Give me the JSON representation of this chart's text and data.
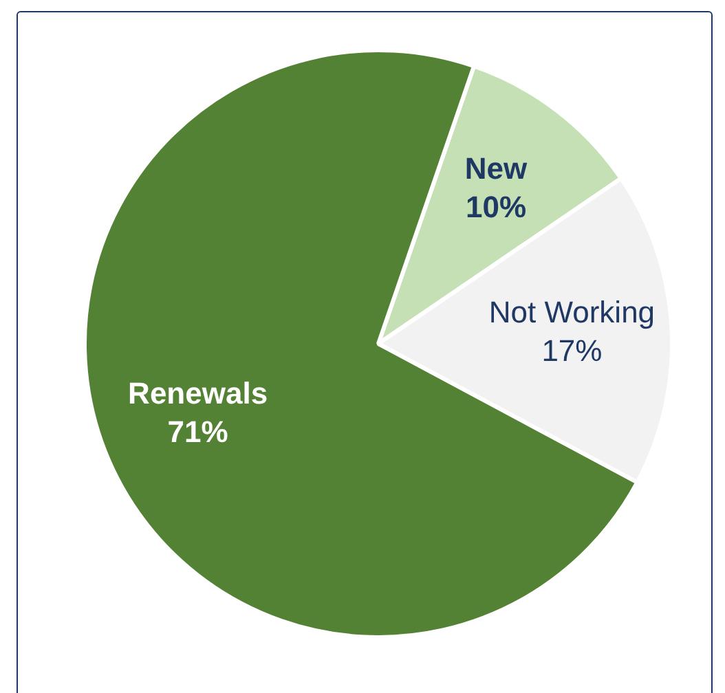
{
  "chart_data": {
    "type": "pie",
    "categories": [
      "New",
      "Not Working",
      "Renewals"
    ],
    "values": [
      10,
      17,
      71
    ],
    "value_labels": [
      "10%",
      "17%",
      "71%"
    ],
    "colors": [
      "#c5e0b4",
      "#f2f2f2",
      "#548235"
    ],
    "legend": false
  }
}
